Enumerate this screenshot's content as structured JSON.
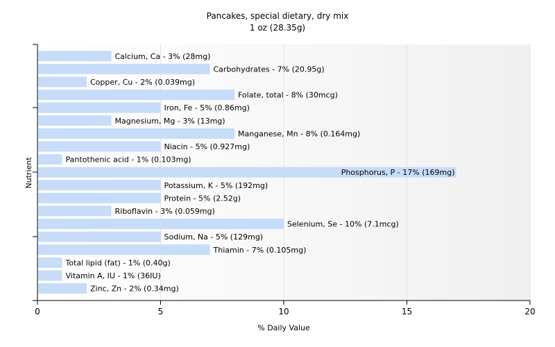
{
  "chart_data": {
    "type": "bar",
    "orientation": "horizontal",
    "title": "Pancakes, special dietary, dry mix",
    "subtitle": "1 oz (28.35g)",
    "xlabel": "% Daily Value",
    "ylabel": "Nutrient",
    "xlim": [
      0,
      20
    ],
    "xticks": [
      "0",
      "5",
      "10",
      "15",
      "20"
    ],
    "grid": "vertical",
    "bar_color": "#c6dcf8",
    "categories": [
      "Calcium, Ca",
      "Carbohydrates",
      "Copper, Cu",
      "Folate, total",
      "Iron, Fe",
      "Magnesium, Mg",
      "Manganese, Mn",
      "Niacin",
      "Pantothenic acid",
      "Phosphorus, P",
      "Potassium, K",
      "Protein",
      "Riboflavin",
      "Selenium, Se",
      "Sodium, Na",
      "Thiamin",
      "Total lipid (fat)",
      "Vitamin A, IU",
      "Zinc, Zn"
    ],
    "values": [
      3,
      7,
      2,
      8,
      5,
      3,
      8,
      5,
      1,
      17,
      5,
      5,
      3,
      10,
      5,
      7,
      1,
      1,
      2
    ],
    "labels": [
      "Calcium, Ca - 3% (28mg)",
      "Carbohydrates - 7% (20.95g)",
      "Copper, Cu - 2% (0.039mg)",
      "Folate, total - 8% (30mcg)",
      "Iron, Fe - 5% (0.86mg)",
      "Magnesium, Mg - 3% (13mg)",
      "Manganese, Mn - 8% (0.164mg)",
      "Niacin - 5% (0.927mg)",
      "Pantothenic acid - 1% (0.103mg)",
      "Phosphorus, P - 17% (169mg)",
      "Potassium, K - 5% (192mg)",
      "Protein - 5% (2.52g)",
      "Riboflavin - 3% (0.059mg)",
      "Selenium, Se - 10% (7.1mcg)",
      "Sodium, Na - 5% (129mg)",
      "Thiamin - 7% (0.105mg)",
      "Total lipid (fat) - 1% (0.40g)",
      "Vitamin A, IU - 1% (36IU)",
      "Zinc, Zn - 2% (0.34mg)"
    ]
  }
}
